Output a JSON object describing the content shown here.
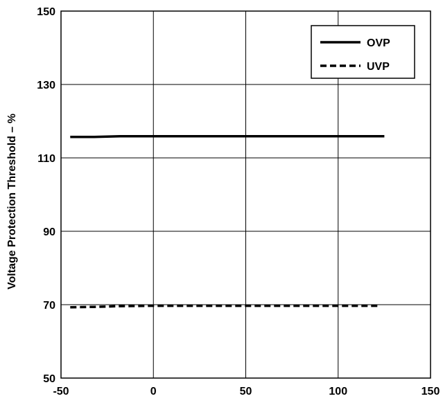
{
  "chart_data": {
    "type": "line",
    "title": "",
    "xlabel": "",
    "ylabel": "Voltage Protection Threshold  – %",
    "xlim": [
      -50,
      150
    ],
    "ylim": [
      50,
      150
    ],
    "x_ticks": [
      -50,
      0,
      50,
      100,
      150
    ],
    "y_ticks": [
      50,
      70,
      90,
      110,
      130,
      150
    ],
    "x_tick_labels": [
      "-50",
      "0",
      "50",
      "100",
      "150"
    ],
    "y_tick_labels": [
      "50",
      "70",
      "90",
      "110",
      "130",
      "150"
    ],
    "grid": true,
    "legend_position": "top-right",
    "series": [
      {
        "name": "OVP",
        "style": "solid",
        "color": "#000000",
        "x": [
          -45,
          -32,
          -18,
          0,
          25,
          50,
          75,
          100,
          125
        ],
        "y": [
          115.7,
          115.7,
          115.9,
          115.9,
          115.9,
          115.9,
          115.9,
          115.9,
          115.9
        ]
      },
      {
        "name": "UVP",
        "style": "dashed",
        "color": "#000000",
        "x": [
          -45,
          -32,
          -18,
          0,
          25,
          50,
          75,
          100,
          123
        ],
        "y": [
          69.3,
          69.4,
          69.6,
          69.7,
          69.7,
          69.7,
          69.7,
          69.7,
          69.7
        ]
      }
    ]
  }
}
